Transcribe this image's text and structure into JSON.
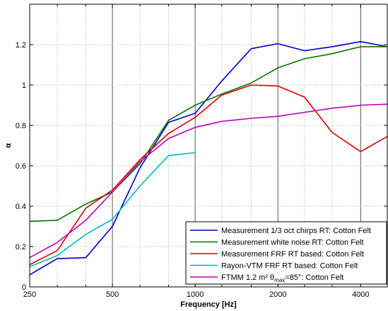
{
  "chart_data": {
    "type": "line",
    "xlabel": "Frequency [Hz]",
    "ylabel": "α",
    "x_scale": "log",
    "xlim": [
      250,
      5000
    ],
    "ylim": [
      0,
      1.4
    ],
    "grid": true,
    "legend_position": "bottom-right",
    "x_major_ticks": [
      250,
      500,
      1000,
      2000,
      4000
    ],
    "x_tick_labels": [
      "250",
      "500",
      "1000",
      "2000",
      "4000"
    ],
    "x_minor_gridlines": [
      315,
      400,
      630,
      800,
      1250,
      1600,
      2500,
      3150
    ],
    "y_ticks": [
      0,
      0.2,
      0.4,
      0.6,
      0.8,
      1,
      1.2
    ],
    "y_tick_labels": [
      "0",
      "0.2",
      "0.4",
      "0.6",
      "0.8",
      "1",
      "1.2"
    ],
    "series": [
      {
        "name": "Measurement 1/3 oct chirps RT: Cotton Felt",
        "color": "#0000cc",
        "x": [
          250,
          315,
          400,
          500,
          630,
          800,
          1000,
          1250,
          1600,
          2000,
          2500,
          3150,
          4000,
          5000
        ],
        "y": [
          0.06,
          0.14,
          0.145,
          0.3,
          0.59,
          0.815,
          0.86,
          1.02,
          1.18,
          1.205,
          1.17,
          1.19,
          1.215,
          1.19
        ]
      },
      {
        "name": "Measurement white noise RT: Cotton Felt",
        "color": "#007700",
        "x": [
          250,
          315,
          400,
          500,
          630,
          800,
          1000,
          1250,
          1600,
          2000,
          2500,
          3150,
          4000,
          5000
        ],
        "y": [
          0.325,
          0.33,
          0.41,
          0.47,
          0.61,
          0.825,
          0.9,
          0.955,
          1.01,
          1.085,
          1.13,
          1.155,
          1.19,
          1.19
        ]
      },
      {
        "name": "Measurement FRF RT based: Cotton Felt",
        "color": "#dd0000",
        "x": [
          250,
          315,
          400,
          500,
          630,
          800,
          1000,
          1250,
          1600,
          2000,
          2500,
          3150,
          4000,
          5000
        ],
        "y": [
          0.11,
          0.18,
          0.39,
          0.48,
          0.63,
          0.76,
          0.84,
          0.95,
          1.0,
          0.995,
          0.94,
          0.765,
          0.67,
          0.745
        ]
      },
      {
        "name": "Rayon-VTM FRF RT based: Cotton Felt",
        "color": "#00bbbb",
        "x": [
          250,
          315,
          400,
          500,
          630,
          800,
          1000
        ],
        "y": [
          0.1,
          0.155,
          0.26,
          0.335,
          0.5,
          0.65,
          0.665
        ]
      },
      {
        "name": "FTMM 1.2 m² θmax=85°: Cotton Felt",
        "name_main": "FTMM 1.2 m² θ",
        "name_sub": "max",
        "name_tail": "=85°: Cotton Felt",
        "color": "#bb00bb",
        "x": [
          250,
          315,
          400,
          500,
          630,
          800,
          1000,
          1250,
          1600,
          2000,
          2500,
          3150,
          4000,
          5000
        ],
        "y": [
          0.145,
          0.22,
          0.33,
          0.47,
          0.62,
          0.735,
          0.79,
          0.82,
          0.835,
          0.845,
          0.865,
          0.885,
          0.9,
          0.905
        ]
      }
    ]
  }
}
